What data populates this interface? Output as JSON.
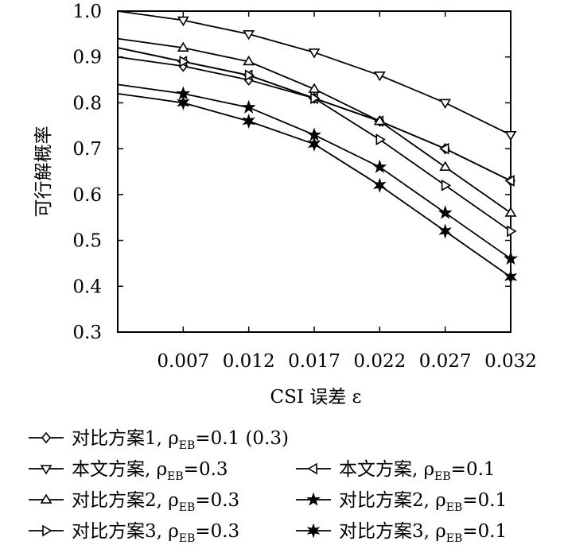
{
  "chart_data": {
    "type": "line",
    "xlabel": "CSI 误差 ε",
    "ylabel": "可行解概率",
    "ylim": [
      0.3,
      1.0
    ],
    "yticks": [
      "0.3",
      "0.4",
      "0.5",
      "0.6",
      "0.7",
      "0.8",
      "0.9",
      "1.0"
    ],
    "yticks_values": [
      0.3,
      0.4,
      0.5,
      0.6,
      0.7,
      0.8,
      0.9,
      1.0
    ],
    "xlim": [
      0.002,
      0.032
    ],
    "xticks": [
      "0.007",
      "0.012",
      "0.017",
      "0.022",
      "0.027",
      "0.032"
    ],
    "xticks_values": [
      0.007,
      0.012,
      0.017,
      0.022,
      0.027,
      0.032
    ],
    "grid": false,
    "legend_position": "bottom",
    "x": [
      0.002,
      0.007,
      0.012,
      0.017,
      0.022,
      0.027,
      0.032
    ],
    "series": [
      {
        "name": "对比方案1, ρ_EB=0.1 (0.3)",
        "legend_prefix": "对比方案1, ρ",
        "legend_sub": "EB",
        "legend_suffix": "=0.1 (0.3)",
        "marker": "diamond",
        "values": [
          0.9,
          0.88,
          0.85,
          0.81,
          0.76,
          0.7,
          0.63
        ]
      },
      {
        "name": "本文方案, ρ_EB=0.3",
        "legend_prefix": "本文方案, ρ",
        "legend_sub": "EB",
        "legend_suffix": "=0.3",
        "marker": "triangle-down",
        "values": [
          1.0,
          0.98,
          0.95,
          0.91,
          0.86,
          0.8,
          0.73
        ]
      },
      {
        "name": "本文方案, ρ_EB=0.1",
        "legend_prefix": "本文方案, ρ",
        "legend_sub": "EB",
        "legend_suffix": "=0.1",
        "marker": "triangle-left",
        "values": [
          0.92,
          0.89,
          0.86,
          0.81,
          0.76,
          0.7,
          0.63
        ]
      },
      {
        "name": "对比方案2, ρ_EB=0.3",
        "legend_prefix": "对比方案2, ρ",
        "legend_sub": "EB",
        "legend_suffix": "=0.3",
        "marker": "triangle-up",
        "values": [
          0.94,
          0.92,
          0.89,
          0.83,
          0.76,
          0.66,
          0.56
        ]
      },
      {
        "name": "对比方案2, ρ_EB=0.1",
        "legend_prefix": "对比方案2, ρ",
        "legend_sub": "EB",
        "legend_suffix": "=0.1",
        "marker": "star",
        "values": [
          0.84,
          0.82,
          0.79,
          0.73,
          0.66,
          0.56,
          0.46
        ]
      },
      {
        "name": "对比方案3, ρ_EB=0.3",
        "legend_prefix": "对比方案3, ρ",
        "legend_sub": "EB",
        "legend_suffix": "=0.3",
        "marker": "triangle-right",
        "values": [
          0.92,
          0.89,
          0.86,
          0.81,
          0.72,
          0.62,
          0.52
        ]
      },
      {
        "name": "对比方案3, ρ_EB=0.1",
        "legend_prefix": "对比方案3, ρ",
        "legend_sub": "EB",
        "legend_suffix": "=0.1",
        "marker": "star6",
        "values": [
          0.82,
          0.8,
          0.76,
          0.71,
          0.62,
          0.52,
          0.42
        ]
      }
    ]
  },
  "colors": {
    "line": "#000000",
    "background": "#ffffff"
  }
}
